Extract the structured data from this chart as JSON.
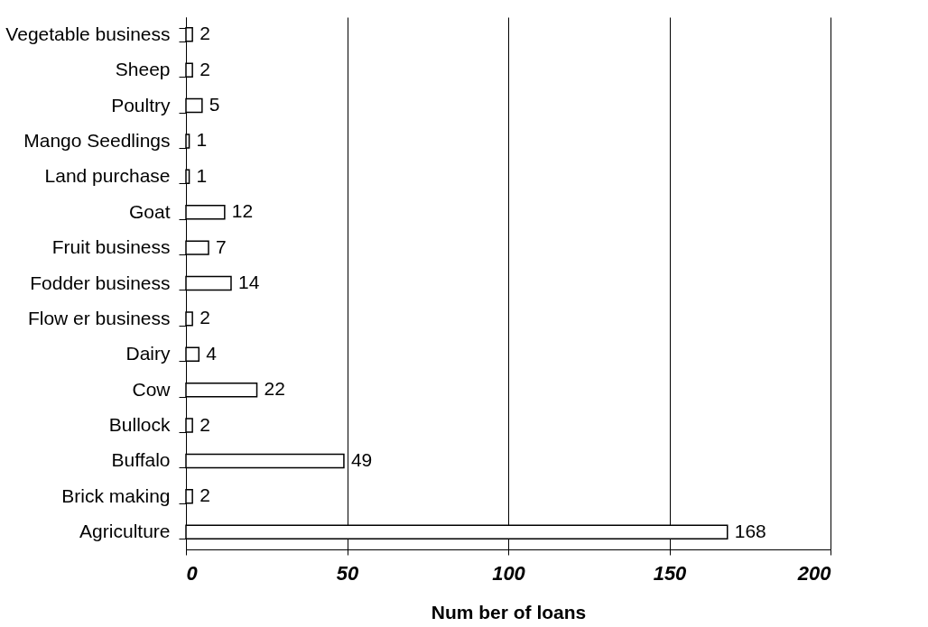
{
  "chart_data": {
    "type": "bar",
    "orientation": "horizontal",
    "xlabel": "Num ber of loans",
    "categories": [
      "Vegetable business",
      "Sheep",
      "Poultry",
      "Mango Seedlings",
      "Land purchase",
      "Goat",
      "Fruit business",
      "Fodder business",
      "Flow er business",
      "Dairy",
      "Cow",
      "Bullock",
      "Buffalo",
      "Brick making",
      "Agriculture"
    ],
    "values": [
      2,
      2,
      5,
      1,
      1,
      12,
      7,
      14,
      2,
      4,
      22,
      2,
      49,
      2,
      168
    ],
    "color": "#ffffff",
    "xlim": [
      0,
      200
    ],
    "xticks": [
      0,
      50,
      100,
      150,
      200
    ],
    "grid": "x",
    "data_labels": true
  }
}
